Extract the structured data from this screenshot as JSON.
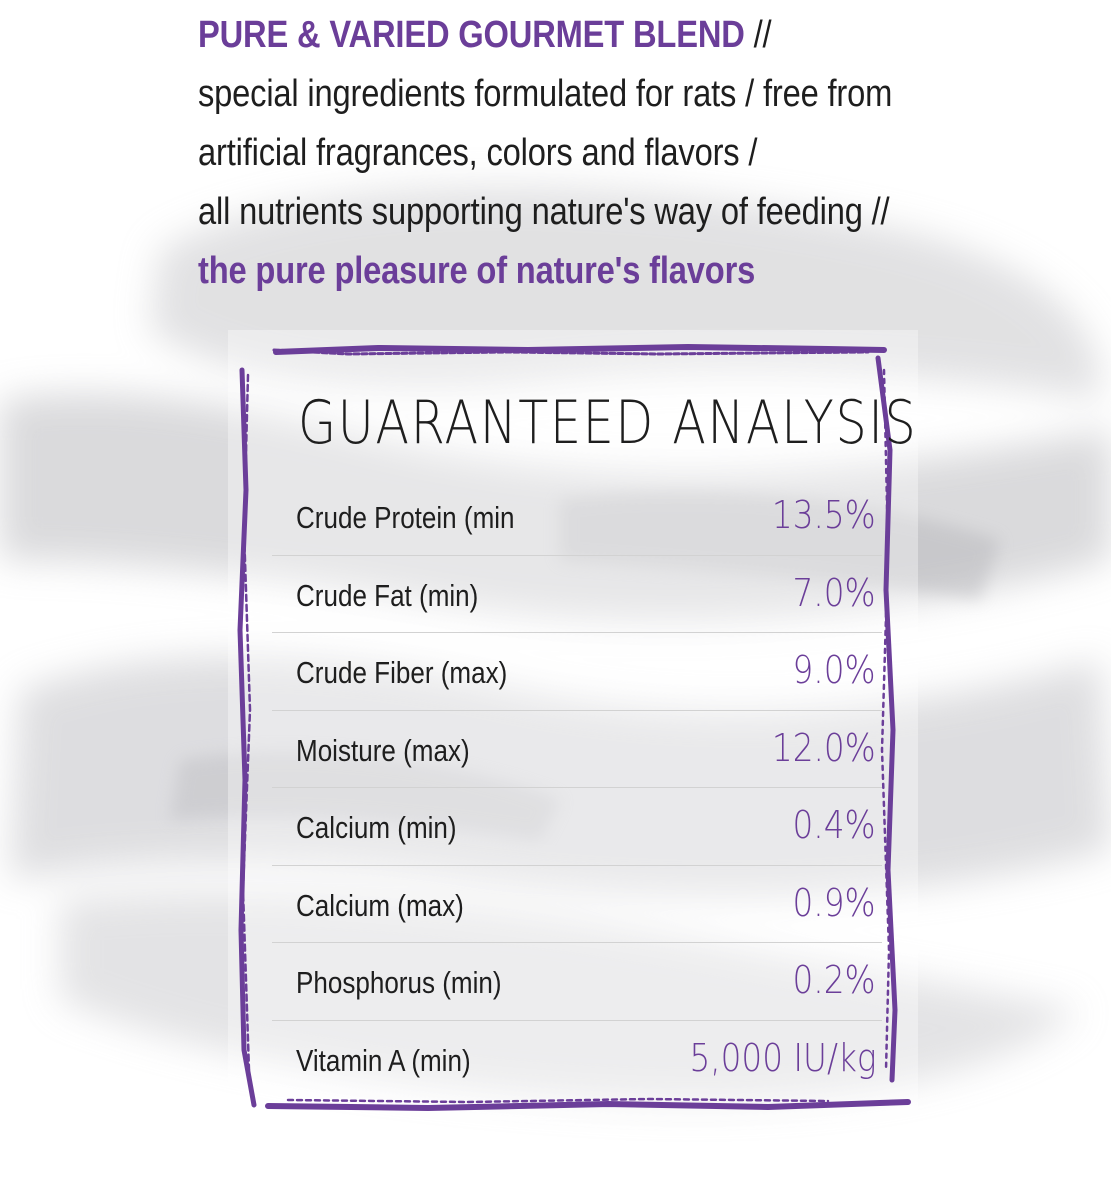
{
  "intro": {
    "heading": "PURE & VARIED GOURMET BLEND",
    "heading_suffix": " //",
    "line2": "special ingredients formulated for rats / free from",
    "line3": "artificial fragrances, colors and flavors /",
    "line4": "all nutrients supporting nature's way of feeding //",
    "tagline": "the pure pleasure of nature's flavors"
  },
  "panel": {
    "title": "GUARANTEED ANALYSIS",
    "rows": [
      {
        "label": "Crude Protein (min",
        "value": "13.5%"
      },
      {
        "label": "Crude Fat (min)",
        "value": "7.0%"
      },
      {
        "label": "Crude Fiber (max)",
        "value": "9.0%"
      },
      {
        "label": "Moisture (max)",
        "value": "12.0%"
      },
      {
        "label": "Calcium (min)",
        "value": "0.4%"
      },
      {
        "label": "Calcium (max)",
        "value": "0.9%"
      },
      {
        "label": "Phosphorus (min)",
        "value": "0.2%"
      },
      {
        "label": "Vitamin A (min)",
        "value": "5,000 IU/kg"
      }
    ]
  },
  "colors": {
    "accent": "#6b3e99",
    "text": "#1e1e1e",
    "divider": "#d2d2d2",
    "watercolor": "#cfcfd2"
  }
}
